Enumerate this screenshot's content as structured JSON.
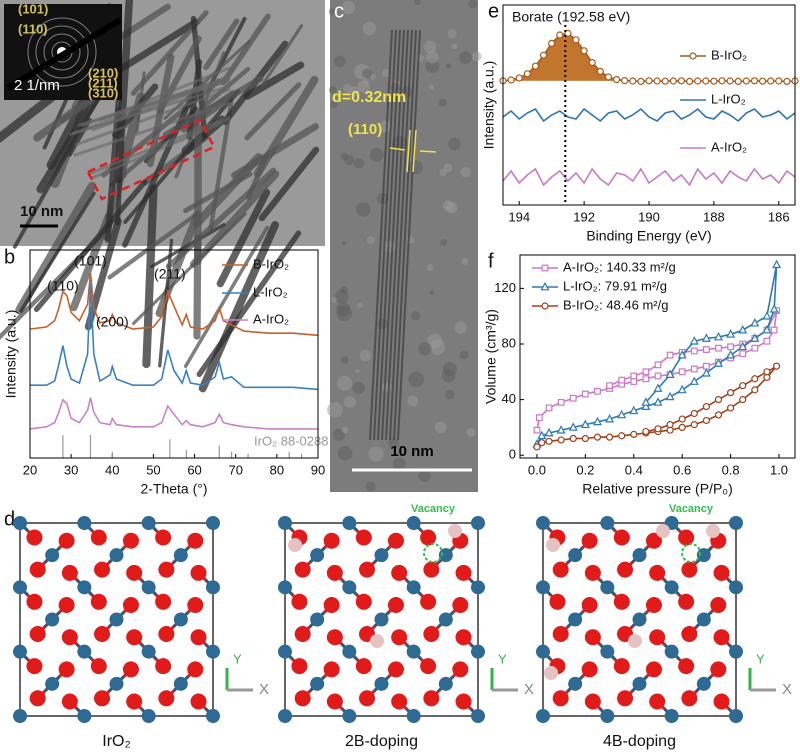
{
  "panels": {
    "a": {
      "label": "a",
      "ring_labels": [
        "(101)",
        "(110)",
        "(210)",
        "(211)",
        "(310)"
      ],
      "inset_scale": "2 1/nm",
      "scale_bar": "10 nm"
    },
    "c": {
      "label": "c",
      "spacing": "d=0.32nm",
      "plane": "(110)",
      "scale_bar": "10 nm"
    },
    "d": {
      "label": "d",
      "structures": [
        {
          "title": "IrO₂"
        },
        {
          "title": "2B-doping",
          "vacancy": "Vacancy"
        },
        {
          "title": "4B-doping",
          "vacancy": "Vacancy"
        }
      ],
      "axis_y": "Y",
      "axis_x": "X"
    }
  },
  "chart_data": [
    {
      "type": "line",
      "panel": "b",
      "xlabel": "2-Theta (°)",
      "ylabel": "Intensity (a.u.)",
      "x": [
        20,
        24,
        26,
        27,
        28,
        29,
        30,
        32,
        34,
        34.7,
        35.5,
        37,
        39.5,
        40,
        41,
        45,
        50,
        52,
        53.5,
        55,
        57,
        58,
        59,
        62,
        65,
        66,
        67,
        69,
        72,
        78,
        84,
        90
      ],
      "series": [
        {
          "name": "B-IrO₂",
          "color": "#c6602b",
          "values": [
            62,
            63,
            66,
            72,
            80,
            78,
            70,
            66,
            74,
            89,
            72,
            65,
            66,
            69,
            65,
            62,
            63,
            68,
            80,
            73,
            64,
            69,
            63,
            62,
            66,
            72,
            66,
            64,
            61,
            60,
            60,
            59
          ]
        },
        {
          "name": "L-IrO₂",
          "color": "#3b80c2",
          "values": [
            35,
            35,
            37,
            45,
            54,
            44,
            38,
            36,
            50,
            84,
            50,
            37,
            40,
            44,
            38,
            35,
            35,
            38,
            52,
            42,
            36,
            42,
            36,
            35,
            39,
            46,
            38,
            39,
            34,
            34,
            34,
            33
          ]
        },
        {
          "name": "A-IrO₂",
          "color": "#c983c6",
          "values": [
            14,
            15,
            17,
            22,
            28,
            26,
            19,
            17,
            23,
            29,
            22,
            17,
            16,
            19,
            16,
            15,
            15,
            17,
            25,
            21,
            16,
            18,
            16,
            15,
            17,
            21,
            17,
            16,
            15,
            14,
            14,
            14
          ]
        }
      ],
      "reference": {
        "name": "IrO₂ 88-0288",
        "color": "#999999",
        "x": [
          28,
          34.7,
          40,
          54,
          58,
          66,
          69,
          73,
          83,
          86
        ],
        "values": [
          11,
          11,
          3,
          9,
          4,
          6,
          3,
          2,
          3,
          2
        ]
      },
      "annotations": [
        {
          "text": "(110)",
          "x": 28
        },
        {
          "text": "(101)",
          "x": 34.7
        },
        {
          "text": "(200)",
          "x": 40
        },
        {
          "text": "(211)",
          "x": 54
        }
      ],
      "xlim": [
        20,
        90
      ],
      "xticks": [
        20,
        30,
        40,
        50,
        60,
        70,
        80,
        90
      ],
      "ylim": [
        0,
        100
      ],
      "legend": "upper right"
    },
    {
      "type": "line",
      "panel": "e",
      "xlabel": "Binding Energy (eV)",
      "ylabel": "Intensity (a.u.)",
      "x": [
        194.5,
        194.25,
        194,
        193.75,
        193.5,
        193.25,
        193,
        192.75,
        192.5,
        192.25,
        192,
        191.75,
        191.5,
        191.25,
        191,
        190.75,
        190.5,
        190.25,
        190,
        189.75,
        189.5,
        189.25,
        189,
        188.75,
        188.5,
        188.25,
        188,
        187.75,
        187.5,
        187.25,
        187,
        186.75,
        186.5,
        186.25,
        186,
        185.75,
        185.5
      ],
      "series": [
        {
          "name": "B-IrO₂",
          "color": "#a85a1c",
          "fill": "#c2762d",
          "marker": "circle",
          "values": [
            62.1,
            62.5,
            63.5,
            65.6,
            69.4,
            74.9,
            80.8,
            85.0,
            85.8,
            82.6,
            77.1,
            71.2,
            66.8,
            64.0,
            62.7,
            62.2,
            62.0,
            61.8,
            62.1,
            62.0,
            61.9,
            62.0,
            62.1,
            61.8,
            62.0,
            62.0,
            61.9,
            62.1,
            62.0,
            61.8,
            62.0,
            62.1,
            61.9,
            62.0,
            62.0,
            61.8,
            62.0
          ]
        },
        {
          "name": "L-IrO₂",
          "color": "#2e75b6",
          "values": [
            44,
            47,
            43,
            46,
            48,
            42,
            45,
            47,
            44,
            43,
            48,
            45,
            42,
            46,
            47,
            43,
            45,
            48,
            44,
            42,
            46,
            47,
            43,
            45,
            48,
            44,
            43,
            47,
            45,
            42,
            46,
            48,
            44,
            45,
            47,
            43,
            46
          ]
        },
        {
          "name": "A-IrO₂",
          "color": "#c77cc5",
          "values": [
            12,
            17,
            11,
            15,
            18,
            10,
            14,
            17,
            12,
            16,
            11,
            18,
            13,
            10,
            16,
            15,
            12,
            18,
            11,
            14,
            17,
            12,
            15,
            10,
            18,
            13,
            16,
            11,
            17,
            14,
            12,
            18,
            13,
            15,
            11,
            17,
            14
          ]
        }
      ],
      "annotations": [
        {
          "text": "Borate (192.58 eV)",
          "x": 192.58
        }
      ],
      "reference_line": "dotted",
      "xlim": [
        194.5,
        185.5
      ],
      "xticks": [
        194,
        192,
        190,
        188,
        186
      ],
      "ylim": [
        0,
        100
      ],
      "legend": "right"
    },
    {
      "type": "line",
      "panel": "f",
      "xlabel": "Relative pressure (P/P₀)",
      "ylabel": "Volume (cm³/g)",
      "series": [
        {
          "name": "A-IrO₂:  140.33 m²/g",
          "color": "#cc77c7",
          "marker": "square",
          "x": [
            0,
            0.01,
            0.05,
            0.1,
            0.15,
            0.2,
            0.25,
            0.3,
            0.35,
            0.4,
            0.45,
            0.5,
            0.55,
            0.6,
            0.65,
            0.7,
            0.75,
            0.8,
            0.85,
            0.9,
            0.95,
            0.98,
            0.99,
            0.95,
            0.9,
            0.85,
            0.8,
            0.75,
            0.7,
            0.65,
            0.6,
            0.55,
            0.5,
            0.45,
            0.4,
            0.35,
            0.3
          ],
          "values": [
            18,
            27,
            34,
            38,
            41,
            44,
            46,
            48,
            51,
            53,
            55,
            57,
            58,
            60,
            62,
            64,
            67,
            70,
            73,
            77,
            82,
            90,
            104,
            90,
            84,
            80,
            78,
            77,
            76,
            75,
            74,
            72,
            65,
            60,
            57,
            54,
            50
          ]
        },
        {
          "name": "L-IrO₂:  79.91 m²/g",
          "color": "#2a7ab9",
          "marker": "triangle",
          "x": [
            0,
            0.02,
            0.05,
            0.1,
            0.15,
            0.2,
            0.25,
            0.3,
            0.35,
            0.4,
            0.45,
            0.5,
            0.55,
            0.6,
            0.65,
            0.7,
            0.75,
            0.8,
            0.85,
            0.9,
            0.95,
            0.98,
            0.99,
            0.95,
            0.9,
            0.85,
            0.8,
            0.75,
            0.7,
            0.65,
            0.6,
            0.55,
            0.5,
            0.45
          ],
          "values": [
            8,
            14,
            16,
            18,
            20,
            22,
            24,
            26,
            29,
            32,
            35,
            38,
            42,
            47,
            53,
            59,
            66,
            72,
            78,
            84,
            90,
            105,
            137,
            100,
            95,
            90,
            87,
            85,
            84,
            82,
            72,
            58,
            48,
            38
          ]
        },
        {
          "name": "B-IrO₂:  48.46 m²/g",
          "color": "#a0401a",
          "marker": "circle",
          "x": [
            0,
            0.02,
            0.05,
            0.1,
            0.15,
            0.2,
            0.25,
            0.3,
            0.35,
            0.4,
            0.45,
            0.5,
            0.55,
            0.6,
            0.65,
            0.7,
            0.75,
            0.8,
            0.85,
            0.9,
            0.95,
            0.99,
            0.95,
            0.9,
            0.85,
            0.8,
            0.75,
            0.7,
            0.65,
            0.6,
            0.55,
            0.5,
            0.45
          ],
          "values": [
            6,
            9,
            10,
            11,
            12,
            12,
            13,
            13,
            14,
            15,
            16,
            17,
            18,
            20,
            22,
            25,
            29,
            34,
            40,
            47,
            56,
            64,
            60,
            55,
            50,
            45,
            40,
            35,
            30,
            26,
            22,
            19,
            17
          ]
        }
      ],
      "xlim": [
        -0.07,
        1.066
      ],
      "xticks": [
        {
          "value": 0,
          "label": "0.0"
        },
        0.2,
        0.4,
        0.6,
        0.8,
        {
          "value": 1,
          "label": "1.0"
        }
      ],
      "ylim": [
        -2,
        144
      ],
      "yticks": [
        0,
        40,
        80,
        120
      ],
      "legend": "upper left"
    }
  ]
}
